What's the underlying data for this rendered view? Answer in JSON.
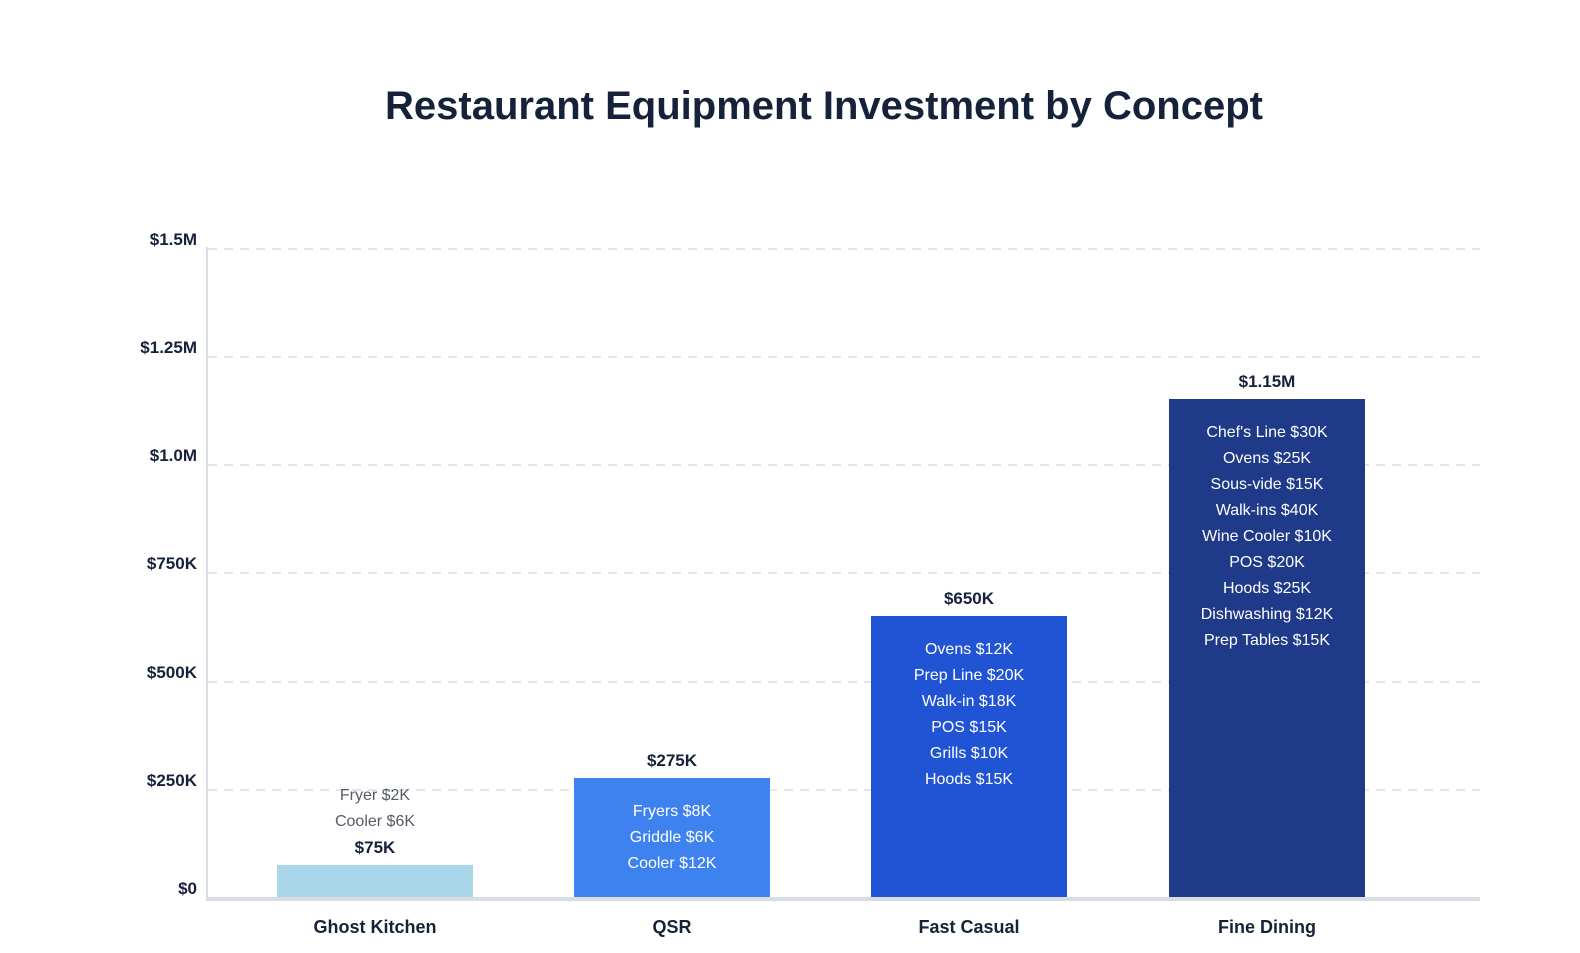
{
  "chart_data": {
    "type": "bar",
    "title": "Restaurant Equipment Investment by Concept",
    "xlabel": "",
    "ylabel": "",
    "ylim": [
      0,
      1500000
    ],
    "ytick_labels": [
      "$0",
      "$250K",
      "$500K",
      "$750K",
      "$1.0M",
      "$1.25M",
      "$1.5M"
    ],
    "ytick_values": [
      0,
      250000,
      500000,
      750000,
      1000000,
      1250000,
      1500000
    ],
    "grid": {
      "horizontal": true,
      "style": "dashed",
      "color": "#e4e5e9"
    },
    "legend": "none",
    "categories": [
      "Ghost Kitchen",
      "QSR",
      "Fast Casual",
      "Fine Dining"
    ],
    "values": [
      75000,
      275000,
      650000,
      1150000
    ],
    "total_labels": [
      "$75K",
      "$275K",
      "$650K",
      "$1.15M"
    ],
    "bars": [
      {
        "category": "Ghost Kitchen",
        "value": 75000,
        "total_label": "$75K",
        "color": "#a9d6e9",
        "breakdown_position": "above",
        "breakdown": [
          "Fryer $2K",
          "Cooler $6K"
        ]
      },
      {
        "category": "QSR",
        "value": 275000,
        "total_label": "$275K",
        "color": "#3e82f0",
        "breakdown_position": "inside",
        "breakdown": [
          "Fryers $8K",
          "Griddle $6K",
          "Cooler $12K"
        ]
      },
      {
        "category": "Fast Casual",
        "value": 650000,
        "total_label": "$650K",
        "color": "#2154d4",
        "breakdown_position": "inside",
        "breakdown": [
          "Ovens $12K",
          "Prep Line $20K",
          "Walk-in $18K",
          "POS $15K",
          "Grills $10K",
          "Hoods $15K"
        ]
      },
      {
        "category": "Fine Dining",
        "value": 1150000,
        "total_label": "$1.15M",
        "color": "#203a8a",
        "breakdown_position": "inside",
        "breakdown": [
          "Chef's Line $30K",
          "Ovens $25K",
          "Sous-vide $15K",
          "Walk-ins $40K",
          "Wine Cooler $10K",
          "POS $20K",
          "Hoods $25K",
          "Dishwashing $12K",
          "Prep Tables $15K"
        ]
      }
    ]
  },
  "colors": {
    "background": "#ffffff",
    "title_text": "#16213a",
    "axis_text": "#16213a",
    "breakdown_above_text": "#565c66",
    "breakdown_inside_text": "#ffffff",
    "gridline": "#e4e5e9",
    "axis_line": "#d8dce3"
  }
}
